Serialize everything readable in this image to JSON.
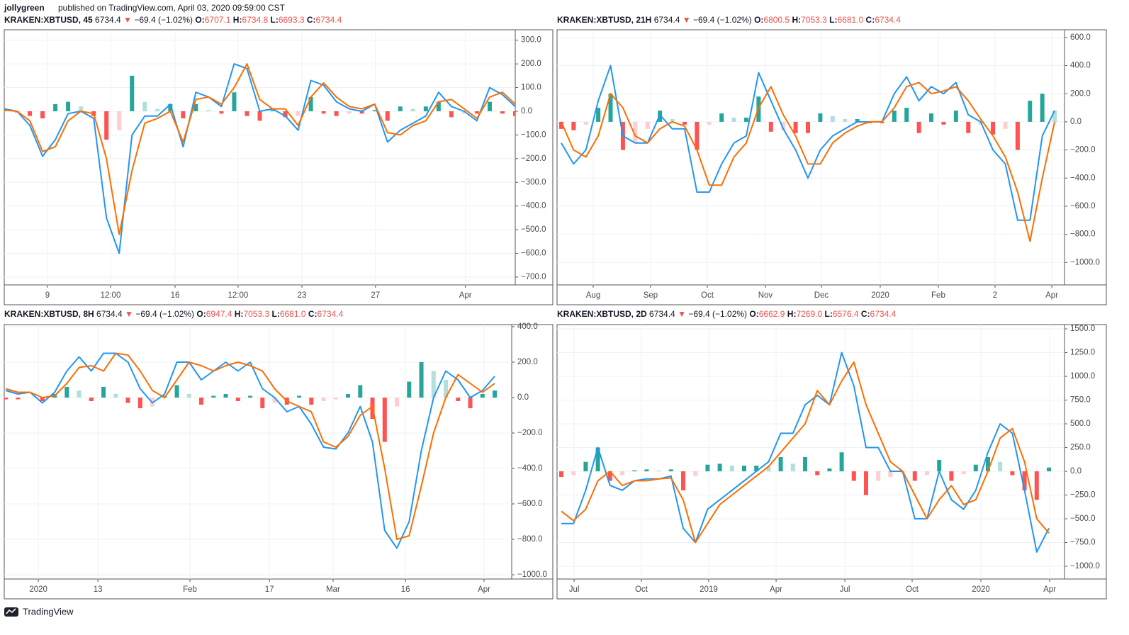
{
  "header": {
    "author": "jollygreen",
    "published": "published on TradingView.com, April 03, 2020 09:59:00 CST"
  },
  "footer": {
    "brand": "TradingView"
  },
  "histogram_colors": [
    "#26a69a",
    "#b2dfdb",
    "#ff5252",
    "#ffcdd2"
  ],
  "chart_data": [
    {
      "type": "macd",
      "symbol": "KRAKEN:XBTUSD, 45",
      "last": "6734.4",
      "arrow": "▼",
      "change": "−69.4 (−1.02%)",
      "ohlc": [
        {
          "label": "O:",
          "value": "6707.1"
        },
        {
          "label": "H:",
          "value": "6734.8"
        },
        {
          "label": "L:",
          "value": "6693.3"
        },
        {
          "label": "C:",
          "value": "6734.4"
        }
      ],
      "xlim": [
        0,
        40
      ],
      "xticks": [
        {
          "value": 3.38,
          "label": "9"
        },
        {
          "value": 8.32,
          "label": "12:00"
        },
        {
          "value": 13.37,
          "label": "16"
        },
        {
          "value": 18.3,
          "label": "12:00"
        },
        {
          "value": 23.3,
          "label": "23"
        },
        {
          "value": 29.06,
          "label": "27"
        },
        {
          "value": 36.1,
          "label": "Apr"
        }
      ],
      "ylim": [
        -733,
        344
      ],
      "yticks": [
        {
          "value": 300,
          "label": "300.0"
        },
        {
          "value": 200,
          "label": "200.0"
        },
        {
          "value": 100,
          "label": "100.0"
        },
        {
          "value": 0,
          "label": "0.0"
        },
        {
          "value": -100,
          "label": "−100.0"
        },
        {
          "value": -200,
          "label": "−200.0"
        },
        {
          "value": -300,
          "label": "−300.0"
        },
        {
          "value": -400,
          "label": "−400.0"
        },
        {
          "value": -500,
          "label": "−500.0"
        },
        {
          "value": -600,
          "label": "−600.0"
        },
        {
          "value": -700,
          "label": "−700.0"
        }
      ],
      "grid": true,
      "histogram": [
        5,
        -5,
        -20,
        -30,
        30,
        40,
        20,
        -20,
        -120,
        -80,
        150,
        40,
        10,
        30,
        -30,
        30,
        5,
        -10,
        80,
        -20,
        -40,
        5,
        -25,
        -20,
        60,
        -10,
        -20,
        -10,
        -10,
        5,
        -40,
        20,
        10,
        20,
        40,
        -25,
        -10,
        -10,
        40,
        -10,
        -20
      ],
      "series": [
        {
          "color": "#2196f3",
          "values": [
            10,
            0,
            -60,
            -190,
            -120,
            -10,
            0,
            -30,
            -450,
            -600,
            -100,
            -20,
            -20,
            30,
            -150,
            80,
            60,
            20,
            200,
            180,
            0,
            10,
            -20,
            -80,
            130,
            110,
            40,
            10,
            0,
            30,
            -130,
            -80,
            -50,
            -20,
            80,
            20,
            0,
            -40,
            100,
            70,
            20
          ]
        },
        {
          "color": "#ff6d00",
          "values": [
            5,
            0,
            -40,
            -170,
            -150,
            -40,
            0,
            -10,
            -200,
            -520,
            -250,
            -50,
            -30,
            0,
            -130,
            50,
            60,
            30,
            100,
            200,
            50,
            10,
            10,
            -60,
            60,
            120,
            60,
            20,
            10,
            30,
            -90,
            -100,
            -60,
            -40,
            40,
            50,
            10,
            -30,
            60,
            80,
            30
          ]
        }
      ]
    },
    {
      "type": "macd",
      "symbol": "KRAKEN:XBTUSD, 21H",
      "last": "6734.4",
      "arrow": "▼",
      "change": "−69.4 (−1.02%)",
      "ohlc": [
        {
          "label": "O:",
          "value": "6800.5"
        },
        {
          "label": "H:",
          "value": "7053.3"
        },
        {
          "label": "L:",
          "value": "6681.0"
        },
        {
          "label": "C:",
          "value": "6734.4"
        }
      ],
      "xlim": [
        -0.34,
        40.8
      ],
      "xticks": [
        {
          "value": 2.59,
          "label": "Aug"
        },
        {
          "value": 7.24,
          "label": "Sep"
        },
        {
          "value": 11.84,
          "label": "Oct"
        },
        {
          "value": 16.55,
          "label": "Nov"
        },
        {
          "value": 21.09,
          "label": "Dec"
        },
        {
          "value": 25.86,
          "label": "2020"
        },
        {
          "value": 30.57,
          "label": "Feb"
        },
        {
          "value": 35.17,
          "label": "2"
        },
        {
          "value": 39.77,
          "label": "Apr"
        }
      ],
      "ylim": [
        -1160,
        655
      ],
      "yticks": [
        {
          "value": 600,
          "label": "600.0"
        },
        {
          "value": 400,
          "label": "400.0"
        },
        {
          "value": 200,
          "label": "200.0"
        },
        {
          "value": 0,
          "label": "0.0"
        },
        {
          "value": -200,
          "label": "−200.0"
        },
        {
          "value": -400,
          "label": "−400.0"
        },
        {
          "value": -600,
          "label": "−600.0"
        },
        {
          "value": -800,
          "label": "−800.0"
        },
        {
          "value": -1000,
          "label": "−1000.0"
        }
      ],
      "grid": true,
      "histogram": [
        -50,
        -60,
        -20,
        100,
        200,
        -200,
        -150,
        -50,
        80,
        20,
        -20,
        -200,
        -20,
        60,
        30,
        30,
        180,
        -70,
        -60,
        -80,
        -80,
        60,
        40,
        20,
        20,
        -10,
        -10,
        80,
        100,
        -80,
        60,
        -20,
        80,
        -80,
        -20,
        -90,
        -50,
        -200,
        150,
        200,
        80
      ],
      "series": [
        {
          "color": "#2196f3",
          "values": [
            -150,
            -300,
            -200,
            150,
            400,
            -100,
            -150,
            -150,
            50,
            -50,
            -50,
            -500,
            -500,
            -300,
            -150,
            -100,
            350,
            150,
            -50,
            -200,
            -400,
            -200,
            -100,
            -50,
            0,
            0,
            0,
            200,
            320,
            150,
            250,
            200,
            280,
            50,
            0,
            -200,
            -300,
            -700,
            -700,
            -100,
            80
          ]
        },
        {
          "color": "#ff6d00",
          "values": [
            0,
            -200,
            -250,
            -100,
            200,
            100,
            -100,
            -150,
            -50,
            0,
            -30,
            -200,
            -450,
            -450,
            -250,
            -150,
            100,
            250,
            50,
            -100,
            -300,
            -300,
            -150,
            -80,
            -30,
            0,
            0,
            100,
            250,
            280,
            200,
            220,
            250,
            150,
            20,
            -100,
            -250,
            -500,
            -850,
            -400,
            0
          ]
        }
      ]
    },
    {
      "type": "macd",
      "symbol": "KRAKEN:XBTUSD, 8H",
      "last": "6734.4",
      "arrow": "▼",
      "change": "−69.4 (−1.02%)",
      "ohlc": [
        {
          "label": "O:",
          "value": "6947.4"
        },
        {
          "label": "H:",
          "value": "7053.3"
        },
        {
          "label": "L:",
          "value": "6681.0"
        },
        {
          "label": "C:",
          "value": "6734.4"
        }
      ],
      "xlim": [
        -0.12,
        41.39
      ],
      "xticks": [
        {
          "value": 2.67,
          "label": "2020"
        },
        {
          "value": 7.54,
          "label": "13"
        },
        {
          "value": 15.07,
          "label": "Feb"
        },
        {
          "value": 21.57,
          "label": "17"
        },
        {
          "value": 26.78,
          "label": "Mar"
        },
        {
          "value": 32.7,
          "label": "16"
        },
        {
          "value": 39.13,
          "label": "Apr"
        }
      ],
      "ylim": [
        -1024,
        412
      ],
      "yticks": [
        {
          "value": 400,
          "label": "400.0"
        },
        {
          "value": 200,
          "label": "200.0"
        },
        {
          "value": 0,
          "label": "0.0"
        },
        {
          "value": -200,
          "label": "−200.0"
        },
        {
          "value": -400,
          "label": "−400.0"
        },
        {
          "value": -600,
          "label": "−600.0"
        },
        {
          "value": -800,
          "label": "−800.0"
        },
        {
          "value": -1000,
          "label": "−1000.0"
        }
      ],
      "grid": true,
      "histogram": [
        -10,
        -10,
        0,
        -20,
        20,
        60,
        40,
        -20,
        60,
        20,
        -30,
        -60,
        -50,
        10,
        70,
        20,
        -40,
        10,
        20,
        -20,
        10,
        -60,
        -30,
        -40,
        10,
        -40,
        -20,
        -10,
        20,
        70,
        -120,
        -250,
        -50,
        90,
        200,
        150,
        100,
        -20,
        -60,
        20,
        40
      ],
      "series": [
        {
          "color": "#2196f3",
          "values": [
            40,
            20,
            30,
            -30,
            30,
            150,
            230,
            150,
            250,
            250,
            200,
            50,
            -30,
            20,
            200,
            200,
            100,
            150,
            200,
            150,
            200,
            50,
            0,
            -80,
            -50,
            -150,
            -280,
            -290,
            -200,
            -50,
            -250,
            -750,
            -850,
            -700,
            -300,
            0,
            150,
            100,
            0,
            40,
            120
          ]
        },
        {
          "color": "#ff6d00",
          "values": [
            50,
            30,
            30,
            0,
            10,
            80,
            170,
            180,
            150,
            250,
            240,
            150,
            40,
            0,
            100,
            200,
            180,
            150,
            180,
            200,
            180,
            150,
            50,
            -20,
            -50,
            -80,
            -250,
            -280,
            -220,
            -100,
            -50,
            -400,
            -800,
            -780,
            -500,
            -200,
            0,
            130,
            80,
            30,
            80
          ]
        }
      ]
    },
    {
      "type": "macd",
      "symbol": "KRAKEN:XBTUSD, 2D",
      "last": "6734.4",
      "arrow": "▼",
      "change": "−69.4 (−1.02%)",
      "ohlc": [
        {
          "label": "O:",
          "value": "6662.9"
        },
        {
          "label": "H:",
          "value": "7269.0"
        },
        {
          "label": "L:",
          "value": "6576.4"
        },
        {
          "label": "C:",
          "value": "6734.4"
        }
      ],
      "xlim": [
        -0.35,
        41.28
      ],
      "xticks": [
        {
          "value": 1.05,
          "label": "Jul"
        },
        {
          "value": 6.57,
          "label": "Oct"
        },
        {
          "value": 12.09,
          "label": "2019"
        },
        {
          "value": 17.62,
          "label": "Apr"
        },
        {
          "value": 23.26,
          "label": "Jul"
        },
        {
          "value": 28.78,
          "label": "Oct"
        },
        {
          "value": 34.42,
          "label": "2020"
        },
        {
          "value": 40.06,
          "label": "Apr"
        }
      ],
      "ylim": [
        -1134,
        1545
      ],
      "yticks": [
        {
          "value": 1500,
          "label": "1500.0"
        },
        {
          "value": 1250,
          "label": "1250.0"
        },
        {
          "value": 1000,
          "label": "1000.0"
        },
        {
          "value": 750,
          "label": "750.0"
        },
        {
          "value": 500,
          "label": "500.0"
        },
        {
          "value": 250,
          "label": "250.0"
        },
        {
          "value": 0,
          "label": "0.0"
        },
        {
          "value": -250,
          "label": "−250.0"
        },
        {
          "value": -500,
          "label": "−500.0"
        },
        {
          "value": -750,
          "label": "−750.0"
        },
        {
          "value": -1000,
          "label": "−1000.0"
        }
      ],
      "grid": true,
      "histogram": [
        -60,
        -40,
        100,
        250,
        -100,
        -40,
        10,
        20,
        10,
        20,
        -200,
        -50,
        70,
        80,
        60,
        60,
        60,
        50,
        150,
        80,
        150,
        -40,
        30,
        200,
        -100,
        -250,
        -100,
        -60,
        -20,
        -100,
        -40,
        120,
        -100,
        -30,
        70,
        150,
        100,
        -40,
        -200,
        -300,
        40
      ],
      "series": [
        {
          "color": "#2196f3",
          "values": [
            -550,
            -550,
            -200,
            250,
            -150,
            -200,
            -100,
            -80,
            -80,
            -50,
            -600,
            -750,
            -400,
            -300,
            -200,
            -100,
            0,
            100,
            400,
            400,
            700,
            800,
            700,
            1250,
            900,
            250,
            250,
            0,
            0,
            -500,
            -500,
            0,
            -300,
            -400,
            -200,
            200,
            500,
            400,
            -200,
            -850,
            -600
          ]
        },
        {
          "color": "#ff6d00",
          "values": [
            -420,
            -520,
            -400,
            -100,
            0,
            -150,
            -100,
            -100,
            -80,
            -70,
            -300,
            -750,
            -550,
            -350,
            -250,
            -150,
            -50,
            50,
            200,
            350,
            500,
            850,
            700,
            950,
            1150,
            700,
            400,
            100,
            0,
            -250,
            -500,
            -300,
            -150,
            -350,
            -300,
            0,
            350,
            450,
            100,
            -500,
            -650
          ]
        }
      ]
    }
  ]
}
